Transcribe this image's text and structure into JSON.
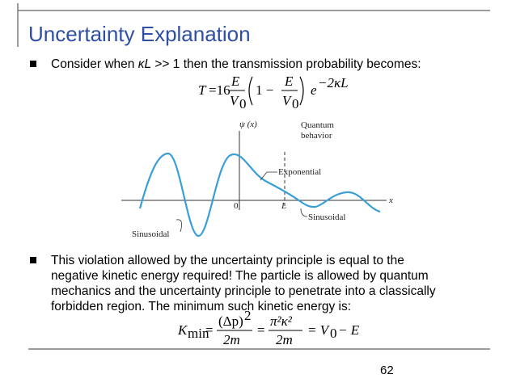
{
  "header": {
    "title": "Uncertainty Explanation"
  },
  "bullets": [
    {
      "parts": [
        "Consider when ",
        "κL",
        " >> 1 then the transmission probability becomes:"
      ]
    },
    {
      "lines": [
        "This violation allowed by the uncertainty principle is equal to the",
        "negative kinetic energy required! The particle is allowed by quantum",
        "mechanics and the uncertainty principle to penetrate into a classically",
        "forbidden region. The minimum such kinetic energy is:"
      ]
    }
  ],
  "equation1": {
    "lhs": "T",
    "coef": "=16",
    "num1": "E",
    "den1": "V",
    "sub1": "0",
    "open": "1 −",
    "num2": "E",
    "den2": "V",
    "sub2": "0",
    "base": "e",
    "exp": "−2κL"
  },
  "equation2": {
    "lhs": "K",
    "lhs_sub": "min",
    "eq1": "=",
    "num1": "(Δp)",
    "num1_sup": "2",
    "den1": "2m",
    "eq2": "=",
    "num2": "π²κ²",
    "den2": "2m",
    "eq3": "= V",
    "eq3_sub": "0",
    "rest": "− E"
  },
  "figure": {
    "y_label": "ψ (x)",
    "quantum": [
      "Quantum",
      "behavior"
    ],
    "exponential": "Exponential",
    "origin": "0",
    "barrier": "L",
    "x_label": "x",
    "sinusoidal_left": "Sinusoidal",
    "sinusoidal_right": "Sinusoidal"
  },
  "footer": {
    "page": "62"
  }
}
